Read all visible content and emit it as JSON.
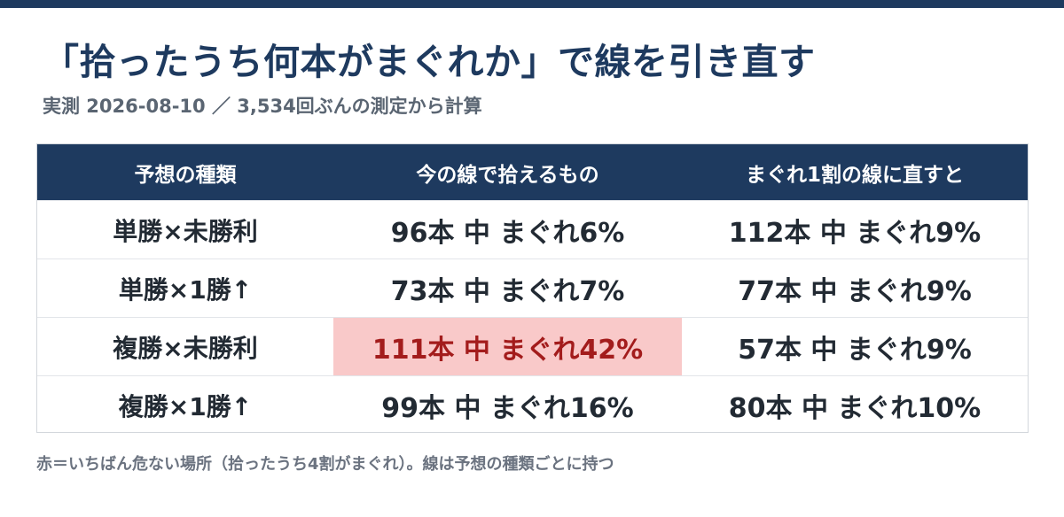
{
  "title": "「拾ったうち何本がまぐれか」で線を引き直す",
  "subtitle": "実測 2026-08-10 ／ 3,534回ぶんの測定から計算",
  "table": {
    "headers": [
      "予想の種類",
      "今の線で拾えるもの",
      "まぐれ1割の線に直すと"
    ],
    "rows": [
      {
        "type": "単勝×未勝利",
        "current": "96本 中 まぐれ6%",
        "adjusted": "112本 中 まぐれ9%",
        "highlight": false
      },
      {
        "type": "単勝×1勝↑",
        "current": "73本 中 まぐれ7%",
        "adjusted": "77本 中 まぐれ9%",
        "highlight": false
      },
      {
        "type": "複勝×未勝利",
        "current": "111本 中 まぐれ42%",
        "adjusted": "57本 中 まぐれ9%",
        "highlight": true
      },
      {
        "type": "複勝×1勝↑",
        "current": "99本 中 まぐれ16%",
        "adjusted": "80本 中 まぐれ10%",
        "highlight": false
      }
    ]
  },
  "colors": {
    "header_bg": "#1e3a5f",
    "danger_bg": "#f9c9c9",
    "danger_text": "#a31c1c"
  },
  "footnote": "赤＝いちばん危ない場所（拾ったうち4割がまぐれ）。線は予想の種類ごとに持つ"
}
